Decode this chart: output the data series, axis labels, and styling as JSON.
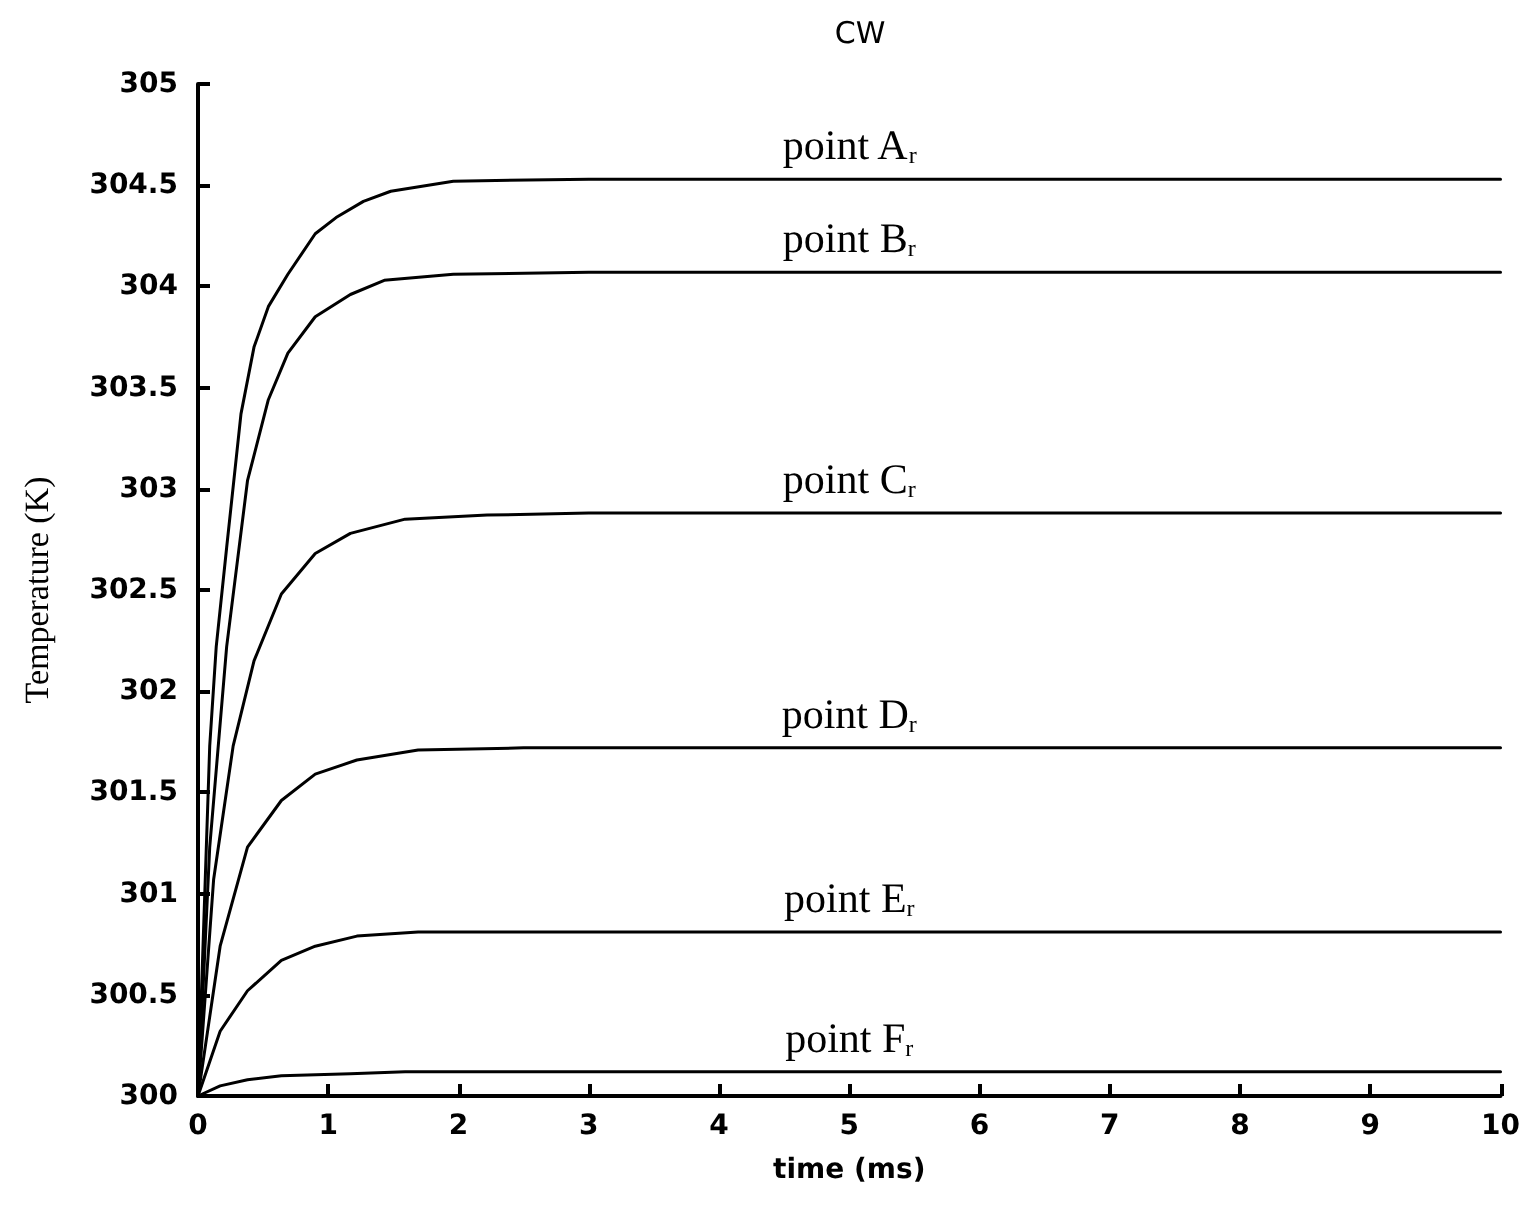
{
  "chart_data": {
    "type": "line",
    "title": "CW",
    "xlabel": "time (ms)",
    "ylabel": "Temperature (K)",
    "xlim": [
      0,
      10
    ],
    "xticks": [
      0,
      1,
      2,
      3,
      4,
      5,
      6,
      7,
      8,
      9,
      10
    ],
    "ylim": [
      300,
      305
    ],
    "yticks": [
      300,
      300.5,
      301,
      301.5,
      302,
      302.5,
      303,
      303.5,
      304,
      304.5,
      305
    ],
    "grid": false,
    "legend": false,
    "marker": "none",
    "line_style": "solid",
    "series": [
      {
        "name": "point A$_{r}$",
        "color": "#000000",
        "x": [
          0,
          0.09,
          0.14,
          0.22,
          0.33,
          0.43,
          0.54,
          0.69,
          0.9,
          1.06,
          1.27,
          1.48,
          1.96,
          3,
          4,
          5,
          6,
          7,
          8,
          9,
          10
        ],
        "values": [
          300,
          301.73,
          302.22,
          302.71,
          303.37,
          303.7,
          303.9,
          304.06,
          304.26,
          304.34,
          304.42,
          304.47,
          304.52,
          304.53,
          304.53,
          304.53,
          304.53,
          304.53,
          304.53,
          304.53,
          304.53
        ]
      },
      {
        "name": "point B$_{r}$",
        "color": "#000000",
        "x": [
          0,
          0.09,
          0.22,
          0.38,
          0.54,
          0.69,
          0.9,
          1.17,
          1.43,
          1.96,
          3,
          4,
          5,
          6,
          7,
          8,
          9,
          10
        ],
        "values": [
          300,
          301.23,
          302.22,
          303.04,
          303.44,
          303.67,
          303.85,
          303.96,
          304.03,
          304.06,
          304.07,
          304.07,
          304.07,
          304.07,
          304.07,
          304.07,
          304.07,
          304.07
        ]
      },
      {
        "name": "point C$_{r}$",
        "color": "#000000",
        "x": [
          0,
          0.12,
          0.27,
          0.43,
          0.64,
          0.9,
          1.17,
          1.59,
          2.22,
          3,
          4,
          5,
          6,
          7,
          8,
          9,
          10
        ],
        "values": [
          300,
          301.07,
          301.73,
          302.15,
          302.48,
          302.68,
          302.78,
          302.85,
          302.87,
          302.88,
          302.88,
          302.88,
          302.88,
          302.88,
          302.88,
          302.88,
          302.88
        ]
      },
      {
        "name": "point D$_{r}$",
        "color": "#000000",
        "x": [
          0,
          0.17,
          0.38,
          0.64,
          0.9,
          1.22,
          1.69,
          2.5,
          3,
          4,
          5,
          6,
          7,
          8,
          9,
          10
        ],
        "values": [
          300,
          300.74,
          301.23,
          301.46,
          301.59,
          301.66,
          301.71,
          301.72,
          301.72,
          301.72,
          301.72,
          301.72,
          301.72,
          301.72,
          301.72,
          301.72
        ]
      },
      {
        "name": "point E$_{r}$",
        "color": "#000000",
        "x": [
          0,
          0.17,
          0.38,
          0.64,
          0.9,
          1.22,
          1.69,
          2.5,
          3,
          4,
          5,
          6,
          7,
          8,
          9,
          10
        ],
        "values": [
          300,
          300.32,
          300.52,
          300.67,
          300.74,
          300.79,
          300.81,
          300.81,
          300.81,
          300.81,
          300.81,
          300.81,
          300.81,
          300.81,
          300.81,
          300.81
        ]
      },
      {
        "name": "point F$_{r}$",
        "color": "#000000",
        "x": [
          0,
          0.17,
          0.38,
          0.64,
          1.17,
          1.59,
          2.5,
          3,
          4,
          5,
          6,
          7,
          8,
          9,
          10
        ],
        "values": [
          300,
          300.05,
          300.08,
          300.1,
          300.11,
          300.12,
          300.12,
          300.12,
          300.12,
          300.12,
          300.12,
          300.12,
          300.12,
          300.12,
          300.12
        ]
      }
    ]
  }
}
